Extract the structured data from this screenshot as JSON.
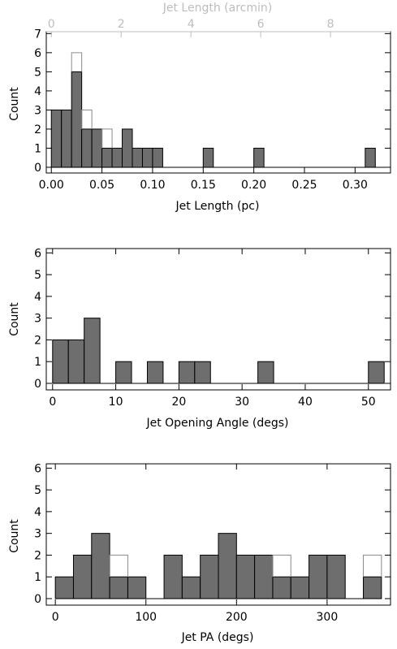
{
  "chart_data": [
    {
      "type": "bar",
      "xlabel": "Jet Length (pc)",
      "ylabel": "Count",
      "top_xlabel": "Jet Length (arcmin)",
      "xlim": [
        -0.005,
        0.335
      ],
      "ylim": [
        -0.3,
        7.1
      ],
      "xticks": [
        0.0,
        0.05,
        0.1,
        0.15,
        0.2,
        0.25,
        0.3
      ],
      "xtick_labels": [
        "0.00",
        "0.05",
        "0.10",
        "0.15",
        "0.20",
        "0.25",
        "0.30"
      ],
      "yticks": [
        0,
        1,
        2,
        3,
        4,
        5,
        6,
        7
      ],
      "ytick_labels": [
        "0",
        "1",
        "2",
        "3",
        "4",
        "5",
        "6",
        "7"
      ],
      "top_xticks": [
        0,
        2,
        4,
        6,
        8
      ],
      "top_xtick_labels": [
        "0",
        "2",
        "4",
        "6",
        "8"
      ],
      "top_axis_xmax": 9.72,
      "bin_edges": [
        0.0,
        0.01,
        0.02,
        0.03,
        0.04,
        0.05,
        0.06,
        0.07,
        0.08,
        0.09,
        0.1,
        0.11,
        0.12,
        0.13,
        0.14,
        0.15,
        0.16,
        0.17,
        0.18,
        0.19,
        0.2,
        0.21,
        0.22,
        0.23,
        0.24,
        0.25,
        0.26,
        0.27,
        0.28,
        0.29,
        0.3,
        0.31,
        0.32,
        0.33
      ],
      "filled_counts": [
        3,
        3,
        5,
        2,
        2,
        1,
        1,
        2,
        1,
        1,
        1,
        0,
        0,
        0,
        0,
        1,
        0,
        0,
        0,
        0,
        1,
        0,
        0,
        0,
        0,
        0,
        0,
        0,
        0,
        0,
        0,
        1,
        0
      ],
      "outline_counts": [
        3,
        3,
        6,
        3,
        2,
        2,
        1,
        2,
        1,
        1,
        1,
        0,
        0,
        0,
        0,
        1,
        0,
        0,
        0,
        0,
        1,
        0,
        0,
        0,
        0,
        0,
        0,
        0,
        0,
        0,
        0,
        1,
        0
      ],
      "grid": false,
      "fill_color": "#6e6e6e",
      "outline_color": "#8a8a8a",
      "top_axis_color": "#bdbdbd"
    },
    {
      "type": "bar",
      "xlabel": "Jet Opening Angle (degs)",
      "ylabel": "Count",
      "xlim": [
        -1,
        53.5
      ],
      "ylim": [
        -0.3,
        6.2
      ],
      "xticks": [
        0,
        10,
        20,
        30,
        40,
        50
      ],
      "xtick_labels": [
        "0",
        "10",
        "20",
        "30",
        "40",
        "50"
      ],
      "yticks": [
        0,
        1,
        2,
        3,
        4,
        5,
        6
      ],
      "ytick_labels": [
        "0",
        "1",
        "2",
        "3",
        "4",
        "5",
        "6"
      ],
      "bin_edges": [
        0,
        2.5,
        5,
        7.5,
        10,
        12.5,
        15,
        17.5,
        20,
        22.5,
        25,
        27.5,
        30,
        32.5,
        35,
        37.5,
        40,
        42.5,
        45,
        47.5,
        50,
        52.5
      ],
      "filled_counts": [
        2,
        2,
        3,
        0,
        1,
        0,
        1,
        0,
        1,
        1,
        0,
        0,
        0,
        1,
        0,
        0,
        0,
        0,
        0,
        0,
        1
      ],
      "outline_counts": [
        2,
        2,
        3,
        0,
        1,
        0,
        1,
        0,
        1,
        1,
        0,
        0,
        0,
        1,
        0,
        0,
        0,
        0,
        0,
        0,
        1
      ],
      "grid": false,
      "fill_color": "#6e6e6e",
      "outline_color": "#8a8a8a"
    },
    {
      "type": "bar",
      "xlabel": "Jet PA (degs)",
      "ylabel": "Count",
      "xlim": [
        -10,
        370
      ],
      "ylim": [
        -0.3,
        6.2
      ],
      "xticks": [
        0,
        100,
        200,
        300
      ],
      "xtick_labels": [
        "0",
        "100",
        "200",
        "300"
      ],
      "yticks": [
        0,
        1,
        2,
        3,
        4,
        5,
        6
      ],
      "ytick_labels": [
        "0",
        "1",
        "2",
        "3",
        "4",
        "5",
        "6"
      ],
      "bin_edges": [
        0,
        20,
        40,
        60,
        80,
        100,
        120,
        140,
        160,
        180,
        200,
        220,
        240,
        260,
        280,
        300,
        320,
        340,
        360
      ],
      "filled_counts": [
        1,
        2,
        3,
        1,
        1,
        0,
        2,
        1,
        2,
        3,
        2,
        2,
        1,
        1,
        2,
        2,
        0,
        1
      ],
      "outline_counts": [
        1,
        2,
        3,
        2,
        1,
        0,
        2,
        1,
        2,
        3,
        2,
        2,
        2,
        1,
        2,
        2,
        0,
        2
      ],
      "grid": false,
      "fill_color": "#6e6e6e",
      "outline_color": "#8a8a8a"
    }
  ]
}
